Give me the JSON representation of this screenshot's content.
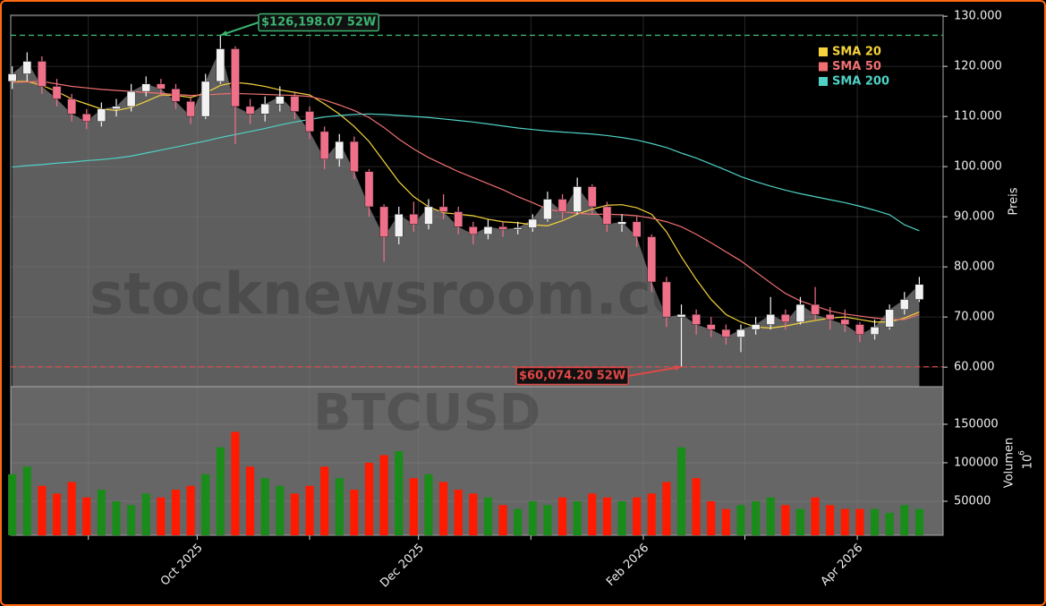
{
  "chart_data": {
    "type": "candlestick",
    "watermark": [
      "stocknewsroom.com",
      "BTCUSD"
    ],
    "y_label": "Preis",
    "volume_label": "Volumen",
    "volume_offset_base": "10",
    "volume_offset_exp": "6",
    "categories": [
      null,
      null,
      null,
      null,
      null,
      null,
      null,
      null,
      null,
      null,
      null,
      null,
      null,
      null,
      null,
      null,
      null,
      null,
      null,
      null,
      null,
      null,
      null,
      null,
      null,
      null,
      null,
      null,
      null,
      null,
      null,
      null,
      null,
      null,
      null,
      null,
      null,
      null,
      null,
      null,
      null,
      null,
      null,
      null,
      null,
      null,
      null,
      null,
      null,
      null,
      null,
      null,
      null,
      null,
      null,
      null,
      null,
      null,
      null,
      null,
      null,
      null
    ],
    "xlim": [
      -0.1,
      62.6
    ],
    "xticks": [
      {
        "value": 12.44,
        "label": "Oct 2025"
      },
      {
        "value": 27.32,
        "label": "Dec 2025"
      },
      {
        "value": 42.44,
        "label": "Feb 2026"
      },
      {
        "value": 56.83,
        "label": "Apr 2026"
      }
    ],
    "xminorticks": [
      5.12,
      20.0,
      34.88,
      49.27
    ],
    "ylim": [
      56100,
      130200
    ],
    "yticks": [
      {
        "value": 60000,
        "label": "60.000"
      },
      {
        "value": 70000,
        "label": "70.000"
      },
      {
        "value": 80000,
        "label": "80.000"
      },
      {
        "value": 90000,
        "label": "90.000"
      },
      {
        "value": 100000,
        "label": "100.000"
      },
      {
        "value": 110000,
        "label": "110.000"
      },
      {
        "value": 120000,
        "label": "120.000"
      },
      {
        "value": 130000,
        "label": "130.000"
      }
    ],
    "volume_ylim": [
      5800,
      198800
    ],
    "volume_yticks": [
      50000,
      100000,
      150000
    ],
    "grid": true,
    "up_color": "#f2f2f2",
    "down_color": "#f0708a",
    "volume_up_color": "#1a8c1a",
    "volume_down_color": "#ff1a00",
    "area_color": "#5e5e5e",
    "open": [
      117000,
      118500,
      121000,
      116000,
      113500,
      110500,
      109000,
      111500,
      112000,
      115000,
      116500,
      115500,
      113000,
      110000,
      117000,
      123500,
      112000,
      110500,
      112500,
      114000,
      111000,
      107000,
      101500,
      105000,
      99000,
      92000,
      86000,
      90500,
      88500,
      92000,
      91000,
      88000,
      86500,
      88000,
      87500,
      87800,
      89500,
      93500,
      91000,
      96000,
      92000,
      88500,
      89000,
      86000,
      77000,
      70000,
      70500,
      68500,
      67500,
      66000,
      67500,
      68500,
      70500,
      69000,
      72500,
      70500,
      69500,
      68500,
      66500,
      68000,
      71500,
      73500
    ],
    "high": [
      120000,
      122800,
      122000,
      117500,
      114500,
      111500,
      112800,
      113500,
      116500,
      118000,
      117500,
      116500,
      114000,
      118500,
      126198.07,
      124000,
      113500,
      114000,
      116000,
      115000,
      112000,
      108000,
      106500,
      106000,
      99500,
      92500,
      92000,
      93000,
      93500,
      94500,
      92000,
      89000,
      89500,
      89000,
      89000,
      90500,
      95000,
      94500,
      97800,
      96500,
      93000,
      90500,
      90000,
      86500,
      78000,
      72500,
      71500,
      70000,
      68500,
      68500,
      70000,
      74000,
      71500,
      74000,
      76000,
      72000,
      71500,
      69000,
      69500,
      72500,
      75000,
      78000
    ],
    "low": [
      115500,
      117000,
      114500,
      112000,
      109000,
      107500,
      108000,
      110000,
      111000,
      114000,
      114000,
      111500,
      108500,
      109500,
      116500,
      104500,
      108500,
      109000,
      111000,
      109500,
      105500,
      99500,
      100000,
      97500,
      90000,
      81000,
      84500,
      87000,
      87500,
      89500,
      86500,
      84500,
      85500,
      86000,
      86500,
      87000,
      89000,
      89500,
      90500,
      90500,
      87000,
      87000,
      84000,
      75000,
      68000,
      60074.2,
      66500,
      66000,
      64500,
      63000,
      66500,
      67500,
      67500,
      68500,
      69500,
      67500,
      67000,
      65000,
      65500,
      67500,
      70500,
      73000
    ],
    "close": [
      118500,
      121000,
      116000,
      113500,
      110500,
      109000,
      111500,
      112000,
      115000,
      116500,
      115500,
      113000,
      110000,
      117000,
      123500,
      112000,
      110500,
      112500,
      114000,
      111000,
      107000,
      101500,
      105000,
      99000,
      92000,
      86000,
      90500,
      88500,
      92000,
      91000,
      88000,
      86500,
      88000,
      87500,
      87800,
      89500,
      93500,
      91000,
      96000,
      92000,
      88500,
      89000,
      86000,
      77000,
      70000,
      70500,
      68500,
      67500,
      66000,
      67500,
      68500,
      70500,
      69000,
      72500,
      70500,
      69500,
      68500,
      66500,
      68000,
      71500,
      73500,
      76500
    ],
    "volume": [
      85000,
      95000,
      70000,
      60000,
      75000,
      55000,
      65000,
      50000,
      45000,
      60000,
      55000,
      65000,
      70000,
      85000,
      120000,
      140000,
      95000,
      80000,
      70000,
      60000,
      70000,
      95000,
      80000,
      65000,
      100000,
      110000,
      115000,
      80000,
      85000,
      75000,
      65000,
      60000,
      55000,
      45000,
      40000,
      50000,
      45000,
      55000,
      50000,
      60000,
      55000,
      50000,
      55000,
      60000,
      75000,
      120000,
      80000,
      50000,
      40000,
      45000,
      50000,
      55000,
      45000,
      40000,
      55000,
      45000,
      40000,
      40000,
      40000,
      35000,
      45000,
      40000
    ],
    "series": [
      {
        "name": "SMA 20",
        "color": "#f5d33b",
        "values": [
          117000,
          117000,
          116200,
          115000,
          113500,
          112500,
          111500,
          111200,
          111800,
          113000,
          114300,
          114200,
          113800,
          114700,
          116200,
          116800,
          116500,
          116000,
          115300,
          114800,
          114300,
          112500,
          110500,
          108000,
          105000,
          101000,
          97000,
          94000,
          92000,
          90800,
          90500,
          90200,
          89500,
          89000,
          88800,
          88400,
          88200,
          89200,
          90500,
          91500,
          92300,
          92400,
          91800,
          90500,
          87000,
          82000,
          77500,
          73500,
          70500,
          69000,
          68000,
          67800,
          68200,
          68800,
          69300,
          69800,
          70000,
          69500,
          69000,
          69000,
          69800,
          71000
        ]
      },
      {
        "name": "SMA 50",
        "color": "#f07070",
        "values": [
          116800,
          116900,
          117000,
          116500,
          116000,
          115700,
          115400,
          115200,
          115000,
          114800,
          114600,
          114400,
          114200,
          114300,
          114500,
          114600,
          114500,
          114400,
          114300,
          114200,
          114000,
          113300,
          112300,
          111200,
          109800,
          107800,
          105500,
          103500,
          101800,
          100400,
          99000,
          97800,
          96600,
          95400,
          94000,
          92800,
          91500,
          91000,
          90700,
          90500,
          90500,
          90400,
          90200,
          89700,
          89000,
          88000,
          86500,
          84800,
          83000,
          81200,
          79000,
          76800,
          74700,
          73200,
          72200,
          71200,
          70600,
          70200,
          69800,
          69500,
          69500,
          70500
        ]
      },
      {
        "name": "SMA 200",
        "color": "#4fd1c5",
        "values": [
          99900,
          100200,
          100400,
          100700,
          100900,
          101200,
          101400,
          101700,
          102100,
          102700,
          103300,
          103900,
          104500,
          105100,
          105800,
          106400,
          107000,
          107600,
          108300,
          108900,
          109400,
          109900,
          110200,
          110400,
          110500,
          110400,
          110200,
          110000,
          109800,
          109500,
          109200,
          108900,
          108500,
          108100,
          107700,
          107400,
          107100,
          106900,
          106700,
          106500,
          106200,
          105800,
          105300,
          104600,
          103800,
          102700,
          101700,
          100500,
          99300,
          98000,
          97000,
          96100,
          95300,
          94600,
          94000,
          93400,
          92800,
          92100,
          91300,
          90400,
          88400,
          87200
        ]
      }
    ],
    "high_52w": {
      "value": 126198.07,
      "label": "$126,198.07 52W",
      "color": "#3cb371"
    },
    "low_52w": {
      "value": 60074.2,
      "label": "$60,074.20 52W",
      "color": "#e04848"
    }
  }
}
